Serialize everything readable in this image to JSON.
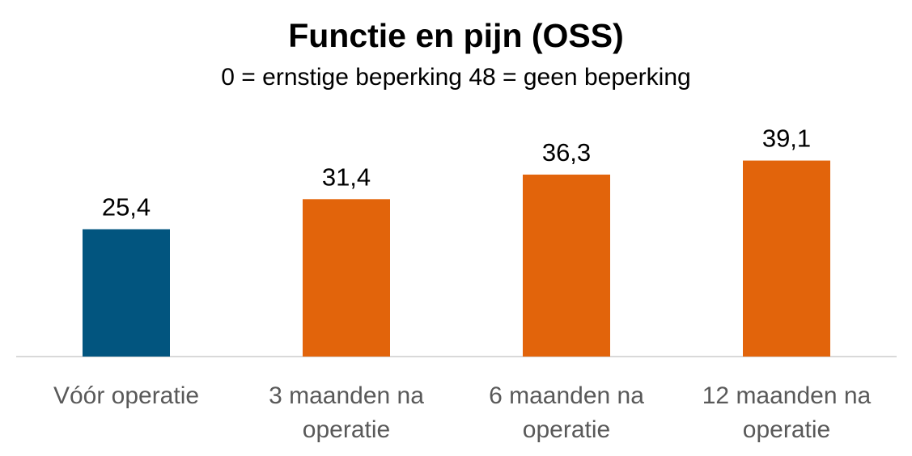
{
  "chart_data": {
    "type": "bar",
    "title": "Functie en pijn (OSS)",
    "subtitle": "0 = ernstige beperking  48 = geen beperking",
    "categories": [
      [
        "Vóór operatie"
      ],
      [
        "3 maanden na",
        "operatie"
      ],
      [
        "6 maanden na",
        "operatie"
      ],
      [
        "12 maanden na",
        "operatie"
      ]
    ],
    "values": [
      25.4,
      31.4,
      36.3,
      39.1
    ],
    "value_labels": [
      "25,4",
      "31,4",
      "36,3",
      "39,1"
    ],
    "bar_colors": [
      "#02557F",
      "#E2640B",
      "#E2640B",
      "#E2640B"
    ],
    "xlabel": "",
    "ylabel": "",
    "ylim": [
      0,
      48
    ],
    "grid": false,
    "legend": "none"
  }
}
